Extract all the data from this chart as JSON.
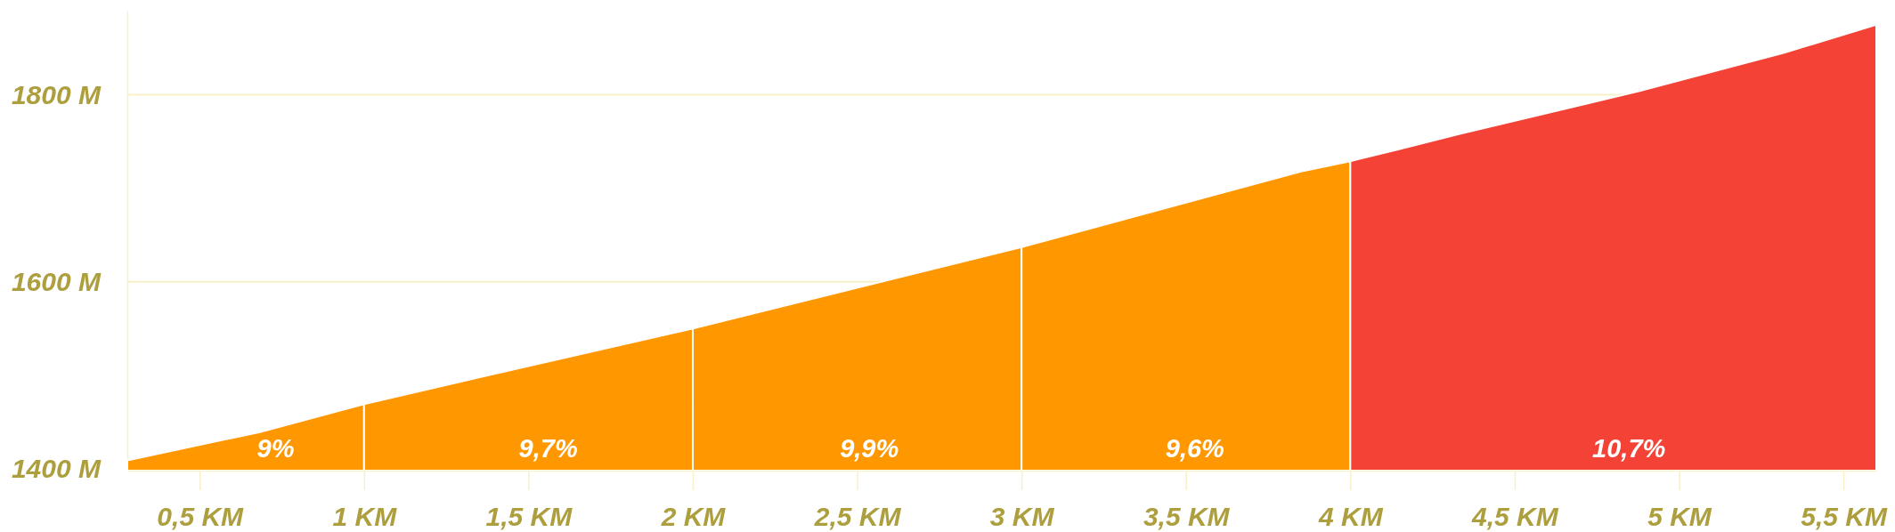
{
  "chart_data": {
    "type": "area",
    "xlim": [
      0.28,
      5.6
    ],
    "xticks": [
      {
        "value": 0.5,
        "label": "0,5 KM"
      },
      {
        "value": 1,
        "label": "1 KM"
      },
      {
        "value": 1.5,
        "label": "1,5 KM"
      },
      {
        "value": 2,
        "label": "2 KM"
      },
      {
        "value": 2.5,
        "label": "2,5 KM"
      },
      {
        "value": 3,
        "label": "3 KM"
      },
      {
        "value": 3.5,
        "label": "3,5 KM"
      },
      {
        "value": 4,
        "label": "4 KM"
      },
      {
        "value": 4.5,
        "label": "4,5 KM"
      },
      {
        "value": 5,
        "label": "5 KM"
      },
      {
        "value": 5.5,
        "label": "5,5 KM"
      }
    ],
    "ylim": [
      1398,
      1890
    ],
    "yticks": [
      {
        "value": 1400,
        "label": "1400 M"
      },
      {
        "value": 1600,
        "label": "1600 M"
      },
      {
        "value": 1800,
        "label": "1800 M"
      }
    ],
    "grid": "y",
    "series": [
      {
        "name": "9%",
        "color": "#ff9800",
        "x": [
          0.28,
          0.68,
          1
        ],
        "values": [
          1409,
          1439,
          1469
        ]
      },
      {
        "name": "9,7%",
        "color": "#ff9800",
        "x": [
          1,
          1.34,
          2
        ],
        "values": [
          1469,
          1497,
          1550
        ]
      },
      {
        "name": "9,9%",
        "color": "#ff9800",
        "x": [
          2,
          3
        ],
        "values": [
          1550,
          1637
        ]
      },
      {
        "name": "9,6%",
        "color": "#ff9800",
        "x": [
          3,
          3.85,
          4
        ],
        "values": [
          1637,
          1718,
          1729
        ]
      },
      {
        "name": "10,7%",
        "color": "#f44336",
        "x": [
          4,
          4.14,
          4.33,
          4.88,
          5.32,
          5.6
        ],
        "values": [
          1729,
          1741,
          1758,
          1804,
          1845,
          1875
        ]
      }
    ]
  }
}
